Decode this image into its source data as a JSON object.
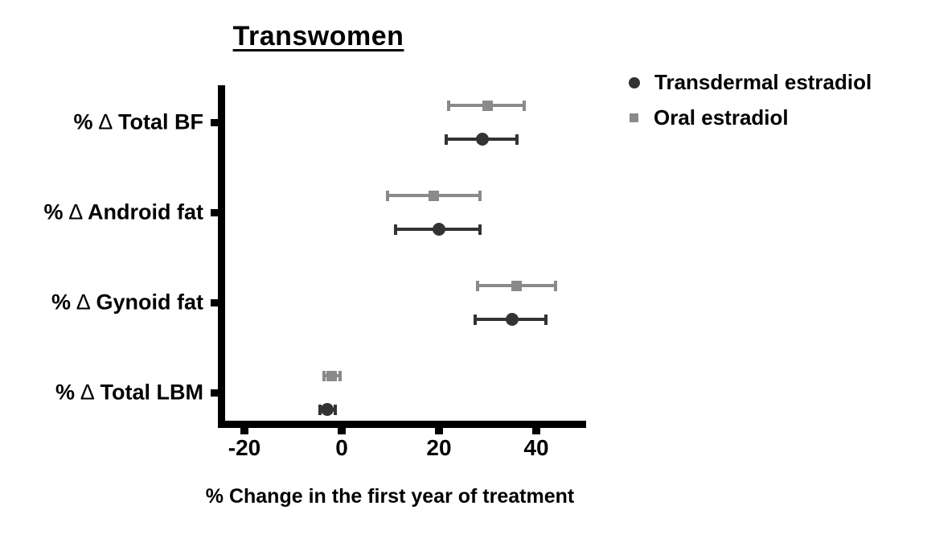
{
  "chart_data": {
    "type": "scatter",
    "subtype": "forest-plot-with-error-bars",
    "title": "Transwomen",
    "xlabel": "% Change in the first year of treatment",
    "x_ticks": [
      "-20",
      "0",
      "20",
      "40"
    ],
    "x_tick_values": [
      -20,
      0,
      20,
      40
    ],
    "xlim": [
      -25,
      50
    ],
    "grid": false,
    "legend_position": "top-right",
    "categories": [
      "% ∆ Total BF",
      "% ∆ Android fat",
      "% ∆ Gynoid fat",
      "% ∆ Total LBM"
    ],
    "series": [
      {
        "name": "Transdermal estradiol",
        "marker": "circle",
        "color": "#333333",
        "points": [
          {
            "category": "% ∆ Total BF",
            "value": 29,
            "ci_low": 21.5,
            "ci_high": 36
          },
          {
            "category": "% ∆ Android fat",
            "value": 20,
            "ci_low": 11,
            "ci_high": 28.5
          },
          {
            "category": "% ∆ Gynoid fat",
            "value": 35,
            "ci_low": 27.5,
            "ci_high": 42
          },
          {
            "category": "% ∆ Total LBM",
            "value": -3,
            "ci_low": -4.5,
            "ci_high": -1.3
          }
        ]
      },
      {
        "name": "Oral estradiol",
        "marker": "square",
        "color": "#8a8a8a",
        "points": [
          {
            "category": "% ∆ Total BF",
            "value": 30,
            "ci_low": 22,
            "ci_high": 37.5
          },
          {
            "category": "% ∆ Android fat",
            "value": 19,
            "ci_low": 9.5,
            "ci_high": 28.5
          },
          {
            "category": "% ∆ Gynoid fat",
            "value": 36,
            "ci_low": 28,
            "ci_high": 44
          },
          {
            "category": "% ∆ Total LBM",
            "value": -2,
            "ci_low": -3.6,
            "ci_high": -0.4
          }
        ]
      }
    ],
    "colors": {
      "axis": "#000000",
      "text": "#000000",
      "background": "#ffffff"
    }
  }
}
